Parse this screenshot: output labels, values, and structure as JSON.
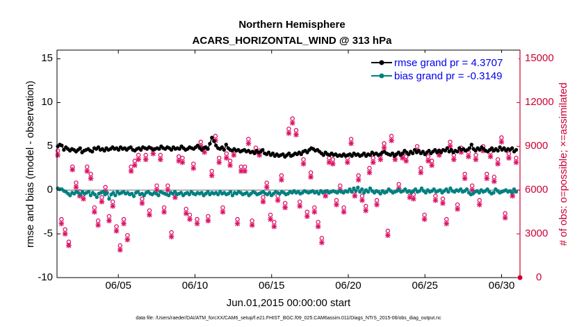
{
  "chart_data": {
    "type": "line",
    "title_line1": "Northern Hemisphere",
    "title_line2": "ACARS_HORIZONTAL_WIND @ 313 hPa",
    "xlabel": "Jun.01,2015 00:00:00 start",
    "ylabel_left": "rmse and bias (model - observation)",
    "ylabel_right": "# of obs: o=possible; ×=assimilated",
    "x_ticks": [
      {
        "label": "06/05",
        "day": 5
      },
      {
        "label": "06/10",
        "day": 10
      },
      {
        "label": "06/15",
        "day": 15
      },
      {
        "label": "06/20",
        "day": 20
      },
      {
        "label": "06/25",
        "day": 25
      },
      {
        "label": "06/30",
        "day": 30
      }
    ],
    "xlim": [
      1.0,
      31.2
    ],
    "ylim_left": [
      -10,
      16
    ],
    "ylim_right": [
      0,
      15600
    ],
    "y_ticks_left": [
      "-10",
      "-5",
      "0",
      "5",
      "10",
      "15"
    ],
    "y_ticks_right": [
      "0",
      "3000",
      "6000",
      "9000",
      "12000",
      "15000"
    ],
    "zero_line": 0,
    "series": [
      {
        "name": "rmse",
        "legend": "rmse grand pr = 4.3707",
        "color": "#000000",
        "values": [
          5.0,
          5.2,
          5.1,
          4.6,
          4.9,
          4.7,
          4.5,
          4.7,
          4.6,
          4.4,
          4.6,
          4.8,
          4.3,
          4.5,
          4.6,
          4.7,
          4.5,
          4.4,
          4.8,
          4.7,
          4.9,
          4.6,
          4.7,
          4.5,
          4.8,
          4.6,
          4.7,
          4.9,
          4.7,
          4.8,
          4.6,
          4.9,
          4.7,
          4.8,
          4.6,
          4.8,
          4.9,
          4.6,
          4.5,
          4.7,
          4.8,
          4.6,
          4.9,
          4.8,
          4.7,
          4.9,
          4.8,
          4.6,
          4.7,
          4.8,
          4.7,
          5.0,
          4.8,
          4.7,
          4.9,
          4.8,
          4.6,
          4.9,
          4.7,
          4.8,
          4.7,
          5.0,
          4.8,
          4.6,
          4.7,
          4.9,
          4.8,
          4.7,
          4.9,
          5.1,
          4.8,
          4.6,
          4.8,
          4.9,
          4.7,
          5.3,
          6.0,
          5.6,
          5.1,
          4.8,
          4.7,
          4.9,
          4.6,
          5.2,
          4.8,
          4.6,
          4.5,
          4.7,
          4.5,
          4.6,
          4.4,
          4.5,
          4.6,
          4.4,
          4.5,
          4.3,
          4.4,
          4.2,
          4.5,
          4.3,
          4.4,
          4.6,
          4.2,
          4.1,
          4.3,
          4.0,
          4.2,
          3.9,
          4.1,
          3.9,
          4.0,
          4.1,
          3.8,
          4.0,
          4.2,
          3.9,
          4.0,
          4.2,
          4.1,
          4.3,
          4.1,
          4.4,
          4.5,
          4.3,
          4.6,
          4.8,
          4.7,
          4.5,
          4.6,
          4.4,
          4.2,
          4.0,
          4.3,
          4.1,
          4.0,
          4.2,
          4.0,
          4.1,
          3.9,
          4.0,
          3.9,
          4.1,
          3.9,
          4.0,
          4.1,
          3.9,
          4.2,
          4.0,
          4.1,
          3.9,
          4.0,
          4.2,
          3.9,
          4.1,
          4.0,
          4.3,
          4.1,
          4.2,
          4.0,
          4.1,
          4.3,
          4.4,
          4.2,
          4.1,
          4.0,
          4.2,
          3.9,
          4.1,
          4.3,
          4.0,
          4.2,
          4.5,
          4.3,
          4.1,
          4.4,
          4.2,
          4.6,
          4.3,
          4.5,
          4.2,
          4.4,
          4.1,
          4.3,
          4.5,
          4.2,
          4.4,
          4.6,
          4.3,
          4.5,
          4.3,
          4.6,
          4.5,
          4.8,
          4.4,
          4.6,
          4.3,
          4.5,
          4.4,
          4.8,
          4.6,
          4.7,
          4.5,
          4.6,
          4.8,
          5.2,
          4.7,
          4.5,
          4.8,
          4.6,
          4.9,
          4.7,
          4.5,
          4.4,
          4.6,
          4.8,
          4.5,
          4.7,
          4.5,
          4.9,
          4.6,
          4.8,
          4.5,
          4.7,
          4.6,
          4.8,
          4.4,
          4.6
        ]
      },
      {
        "name": "bias",
        "legend": "bias grand pr = -0.3149",
        "color": "#008080",
        "values": [
          0.2,
          0.1,
          0.1,
          -0.1,
          -0.2,
          -0.4,
          -0.6,
          -0.3,
          -0.4,
          -0.2,
          -0.3,
          -0.5,
          -0.2,
          -0.4,
          -0.3,
          -0.2,
          -0.6,
          -0.3,
          -0.5,
          -0.8,
          -0.4,
          -0.3,
          -0.2,
          -0.5,
          -0.3,
          -1.0,
          -0.5,
          -0.3,
          -0.6,
          -0.2,
          -0.4,
          -0.3,
          -0.2,
          -0.4,
          -0.3,
          -0.5,
          -0.4,
          -0.7,
          -0.3,
          -0.2,
          -0.5,
          -0.4,
          -0.6,
          -0.3,
          -0.2,
          -0.4,
          -0.5,
          -0.3,
          -0.4,
          -0.6,
          -0.2,
          -0.3,
          -0.4,
          -0.5,
          -0.6,
          -0.3,
          -0.4,
          -0.2,
          -0.5,
          -0.4,
          -0.3,
          -0.6,
          -0.4,
          -0.3,
          -0.5,
          -0.2,
          -0.4,
          -0.5,
          -0.3,
          -0.4,
          -0.3,
          -0.6,
          -0.4,
          -0.2,
          -0.5,
          -0.3,
          -0.4,
          -0.3,
          -0.5,
          -0.2,
          -0.4,
          -0.3,
          -0.5,
          -0.4,
          -0.2,
          -0.6,
          -0.3,
          -0.4,
          -0.2,
          -0.3,
          -0.5,
          -0.4,
          -0.3,
          -0.6,
          -0.4,
          -0.2,
          -0.3,
          -0.5,
          -0.4,
          -0.3,
          -0.2,
          -0.4,
          -0.5,
          -0.3,
          -0.6,
          -0.4,
          -0.2,
          -0.3,
          -0.4,
          -0.2,
          -0.3,
          -0.5,
          -0.4,
          -0.2,
          -0.3,
          -0.1,
          -0.3,
          -0.2,
          -0.4,
          -0.3,
          -0.1,
          -0.2,
          -0.3,
          -0.2,
          -0.1,
          -0.3,
          -0.2,
          -0.4,
          -0.1,
          -0.3,
          -0.2,
          -0.1,
          -0.3,
          -0.2,
          -0.1,
          -0.2,
          -0.3,
          -0.1,
          -0.2,
          -0.3,
          -0.1,
          -0.2,
          0.1,
          -0.2,
          0.2,
          -0.1,
          0.3,
          -0.2,
          0.1,
          -0.3,
          0.0,
          -0.2,
          0.2,
          -0.1,
          -0.3,
          -0.1,
          -0.2,
          -0.4,
          -0.1,
          -0.3,
          -0.2,
          0.1,
          -0.1,
          -0.3,
          -0.2,
          -0.1,
          0.0,
          -0.2,
          -0.1,
          0.1,
          -0.2,
          -0.1,
          -0.3,
          -0.1,
          0.1,
          -0.2,
          -0.1,
          0.2,
          -0.1,
          -0.3,
          0.0,
          -0.2,
          -0.1,
          0.1,
          -0.2,
          -0.1,
          0.0,
          -0.3,
          -0.1,
          0.1,
          -0.2,
          0.2,
          -0.1,
          -0.2,
          0.0,
          -0.1,
          0.1,
          -0.2,
          -0.1,
          0.1,
          -0.3,
          -0.5,
          -0.4,
          -0.2,
          -0.1,
          -0.3,
          0.0,
          -0.2,
          -0.1,
          0.1,
          -0.2,
          -0.4,
          -0.3,
          0.1,
          -0.1,
          -0.3,
          -0.2,
          -0.1,
          0.0,
          -0.2,
          -0.1,
          -0.3,
          0.1,
          -0.2
        ]
      },
      {
        "name": "obs_possible",
        "marker": "o",
        "color": "#dd1166",
        "values": [
          8700,
          4000,
          3300,
          2450,
          7600,
          6500,
          5900,
          5700,
          7600,
          7100,
          4800,
          3900,
          5500,
          6200,
          4200,
          5200,
          3500,
          2200,
          4000,
          2900,
          7600,
          8000,
          8400,
          5400,
          8400,
          4600,
          8800,
          6300,
          8400,
          4800,
          6300,
          3100,
          5800,
          8300,
          8200,
          4700,
          4300,
          7800,
          4000,
          9300,
          8900,
          4200,
          7300,
          9700,
          8200,
          4800,
          8500,
          8000,
          8700,
          4000,
          7600,
          7600,
          9500,
          3900,
          8900,
          8700,
          5500,
          6500,
          4300,
          3800,
          5600,
          7000,
          5100,
          10200,
          10900,
          10100,
          5200,
          8100,
          4500,
          7200,
          4800,
          3800,
          2700,
          5900,
          8200,
          8100,
          5300,
          6300,
          4800,
          8200,
          9500,
          5900,
          7000,
          5600,
          4900,
          7500,
          8200,
          5300,
          8400,
          9200,
          3200,
          9700,
          8400,
          6400,
          8500,
          8300,
          5800,
          5700,
          9000,
          7500,
          4300,
          8300,
          8000,
          5600,
          8700,
          5400,
          4000,
          9300,
          8400,
          5000,
          8900,
          7100,
          8600,
          6300,
          8400,
          5300,
          9000,
          7100,
          8600,
          6900,
          8100,
          9600,
          4400,
          8500,
          5900,
          8200
        ]
      },
      {
        "name": "obs_assimilated",
        "marker": "x",
        "color": "#dd1166",
        "values": [
          8400,
          3700,
          3000,
          2200,
          7400,
          6200,
          5600,
          5400,
          7300,
          6800,
          4500,
          3600,
          5200,
          5900,
          3900,
          4900,
          3200,
          1900,
          3700,
          2600,
          7300,
          7700,
          8100,
          5100,
          8100,
          4300,
          8500,
          6000,
          8100,
          4500,
          6000,
          2800,
          5500,
          8000,
          7900,
          4400,
          4000,
          7500,
          3700,
          9000,
          8600,
          3900,
          7000,
          9400,
          7900,
          4500,
          8200,
          7700,
          8400,
          3700,
          7300,
          7300,
          9200,
          3600,
          8600,
          8400,
          5200,
          6200,
          4000,
          3500,
          5300,
          6700,
          4800,
          9900,
          10600,
          9800,
          4900,
          7800,
          4200,
          6900,
          4500,
          3500,
          2400,
          5600,
          7900,
          7800,
          5000,
          6000,
          4500,
          7900,
          9200,
          5600,
          6700,
          5300,
          4600,
          7200,
          7900,
          5000,
          8100,
          8900,
          2900,
          9400,
          8100,
          6100,
          8200,
          8000,
          5500,
          5400,
          8700,
          7200,
          4000,
          8000,
          7700,
          5300,
          8400,
          5100,
          3700,
          9000,
          8100,
          4700,
          8600,
          6800,
          8300,
          6000,
          8100,
          5000,
          8700,
          6800,
          8300,
          6600,
          7800,
          9300,
          4100,
          8200,
          5600,
          7900
        ]
      }
    ],
    "footnote": "data file: /Users/raeder/DAI/ATM_forcXX/CAM6_setup/f.e21.FHIST_BGC.f09_025.CAM6assim.011/Diags_NTrS_2015-06/obs_diag_output.nc"
  }
}
